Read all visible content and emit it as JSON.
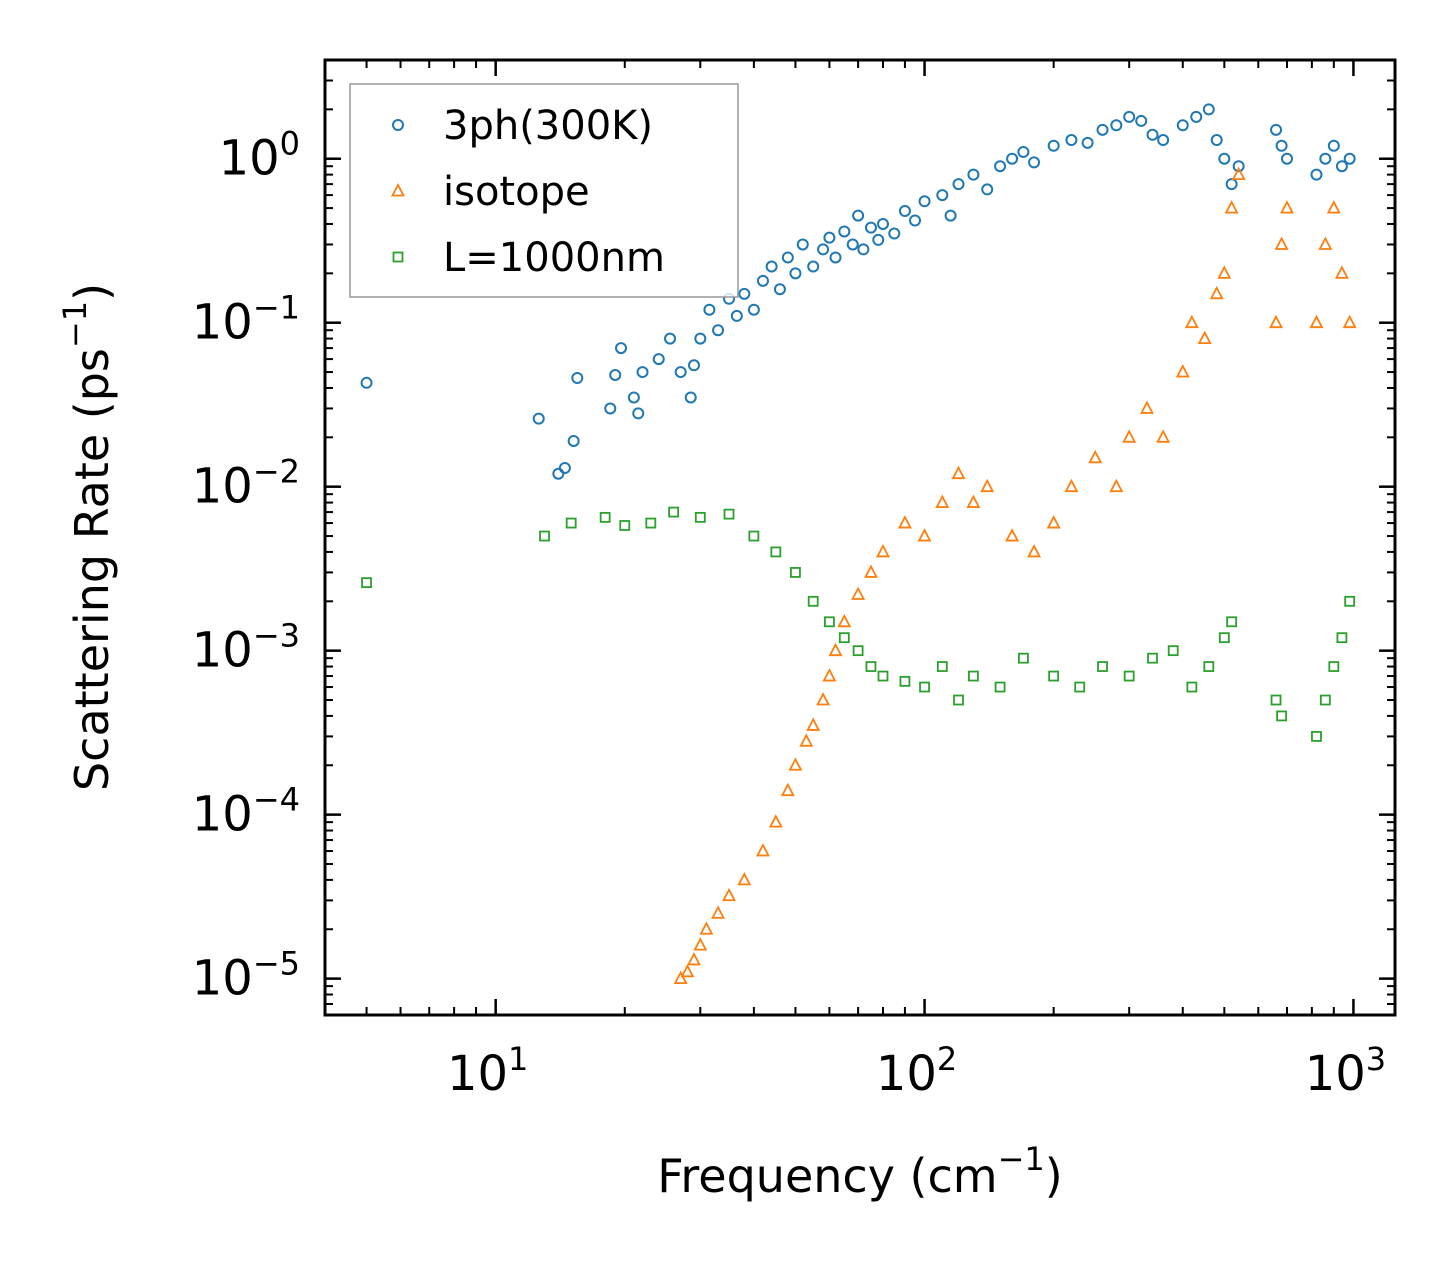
{
  "chart_data": {
    "type": "scatter",
    "xscale": "log",
    "yscale": "log",
    "xlim": [
      4,
      1250
    ],
    "ylim": [
      6e-06,
      4
    ],
    "xlabel": {
      "text": "Frequency (cm",
      "sup": "−1",
      "close": ")"
    },
    "ylabel": {
      "text": "Scattering Rate (ps",
      "sup": "−1",
      "close": ")"
    },
    "x_ticks": [
      {
        "value": 10,
        "base": "10",
        "exp": "1"
      },
      {
        "value": 100,
        "base": "10",
        "exp": "2"
      },
      {
        "value": 1000,
        "base": "10",
        "exp": "3"
      }
    ],
    "y_ticks": [
      {
        "value": 1,
        "base": "10",
        "exp": "0"
      },
      {
        "value": 0.1,
        "base": "10",
        "exp": "−1"
      },
      {
        "value": 0.01,
        "base": "10",
        "exp": "−2"
      },
      {
        "value": 0.001,
        "base": "10",
        "exp": "−3"
      },
      {
        "value": 0.0001,
        "base": "10",
        "exp": "−4"
      },
      {
        "value": 1e-05,
        "base": "10",
        "exp": "−5"
      }
    ],
    "legend_position": "top-left",
    "series": [
      {
        "name": "3ph(300K)",
        "marker": "circle",
        "color": "#1f77b4",
        "points": [
          [
            5.0,
            0.043
          ],
          [
            12.6,
            0.026
          ],
          [
            14.0,
            0.012
          ],
          [
            14.5,
            0.013
          ],
          [
            15.2,
            0.019
          ],
          [
            15.5,
            0.046
          ],
          [
            18.5,
            0.03
          ],
          [
            19.0,
            0.048
          ],
          [
            19.6,
            0.07
          ],
          [
            21.0,
            0.035
          ],
          [
            21.5,
            0.028
          ],
          [
            22.0,
            0.05
          ],
          [
            24.0,
            0.06
          ],
          [
            25.5,
            0.08
          ],
          [
            27.0,
            0.05
          ],
          [
            28.5,
            0.035
          ],
          [
            29.0,
            0.055
          ],
          [
            30.0,
            0.08
          ],
          [
            31.5,
            0.12
          ],
          [
            33.0,
            0.09
          ],
          [
            35.0,
            0.14
          ],
          [
            36.5,
            0.11
          ],
          [
            38.0,
            0.15
          ],
          [
            40.0,
            0.12
          ],
          [
            42.0,
            0.18
          ],
          [
            44.0,
            0.22
          ],
          [
            46.0,
            0.16
          ],
          [
            48.0,
            0.25
          ],
          [
            50.0,
            0.2
          ],
          [
            52.0,
            0.3
          ],
          [
            55.0,
            0.22
          ],
          [
            58.0,
            0.28
          ],
          [
            60.0,
            0.33
          ],
          [
            62.0,
            0.25
          ],
          [
            65.0,
            0.36
          ],
          [
            68.0,
            0.3
          ],
          [
            70.0,
            0.45
          ],
          [
            72.0,
            0.28
          ],
          [
            75.0,
            0.38
          ],
          [
            78.0,
            0.32
          ],
          [
            80.0,
            0.4
          ],
          [
            85.0,
            0.35
          ],
          [
            90.0,
            0.48
          ],
          [
            95.0,
            0.42
          ],
          [
            100.0,
            0.55
          ],
          [
            110.0,
            0.6
          ],
          [
            115.0,
            0.45
          ],
          [
            120.0,
            0.7
          ],
          [
            130.0,
            0.8
          ],
          [
            140.0,
            0.65
          ],
          [
            150.0,
            0.9
          ],
          [
            160.0,
            1.0
          ],
          [
            170.0,
            1.1
          ],
          [
            180.0,
            0.95
          ],
          [
            200.0,
            1.2
          ],
          [
            220.0,
            1.3
          ],
          [
            240.0,
            1.25
          ],
          [
            260.0,
            1.5
          ],
          [
            280.0,
            1.6
          ],
          [
            300.0,
            1.8
          ],
          [
            320.0,
            1.7
          ],
          [
            340.0,
            1.4
          ],
          [
            360.0,
            1.3
          ],
          [
            400.0,
            1.6
          ],
          [
            430.0,
            1.8
          ],
          [
            460.0,
            2.0
          ],
          [
            480.0,
            1.3
          ],
          [
            500.0,
            1.0
          ],
          [
            520.0,
            0.7
          ],
          [
            540.0,
            0.9
          ],
          [
            660.0,
            1.5
          ],
          [
            680.0,
            1.2
          ],
          [
            700.0,
            1.0
          ],
          [
            820.0,
            0.8
          ],
          [
            860.0,
            1.0
          ],
          [
            900.0,
            1.2
          ],
          [
            940.0,
            0.9
          ],
          [
            980.0,
            1.0
          ]
        ]
      },
      {
        "name": "isotope",
        "marker": "triangle",
        "color": "#ff7f0e",
        "points": [
          [
            27.0,
            1e-05
          ],
          [
            28.0,
            1.1e-05
          ],
          [
            29.0,
            1.3e-05
          ],
          [
            30.0,
            1.6e-05
          ],
          [
            31.0,
            2e-05
          ],
          [
            33.0,
            2.5e-05
          ],
          [
            35.0,
            3.2e-05
          ],
          [
            38.0,
            4e-05
          ],
          [
            42.0,
            6e-05
          ],
          [
            45.0,
            9e-05
          ],
          [
            48.0,
            0.00014
          ],
          [
            50.0,
            0.0002
          ],
          [
            53.0,
            0.00028
          ],
          [
            55.0,
            0.00035
          ],
          [
            58.0,
            0.0005
          ],
          [
            60.0,
            0.0007
          ],
          [
            62.0,
            0.001
          ],
          [
            65.0,
            0.0015
          ],
          [
            70.0,
            0.0022
          ],
          [
            75.0,
            0.003
          ],
          [
            80.0,
            0.004
          ],
          [
            90.0,
            0.006
          ],
          [
            100.0,
            0.005
          ],
          [
            110.0,
            0.008
          ],
          [
            120.0,
            0.012
          ],
          [
            130.0,
            0.008
          ],
          [
            140.0,
            0.01
          ],
          [
            160.0,
            0.005
          ],
          [
            180.0,
            0.004
          ],
          [
            200.0,
            0.006
          ],
          [
            220.0,
            0.01
          ],
          [
            250.0,
            0.015
          ],
          [
            280.0,
            0.01
          ],
          [
            300.0,
            0.02
          ],
          [
            330.0,
            0.03
          ],
          [
            360.0,
            0.02
          ],
          [
            400.0,
            0.05
          ],
          [
            420.0,
            0.1
          ],
          [
            450.0,
            0.08
          ],
          [
            480.0,
            0.15
          ],
          [
            500.0,
            0.2
          ],
          [
            520.0,
            0.5
          ],
          [
            540.0,
            0.8
          ],
          [
            660.0,
            0.1
          ],
          [
            680.0,
            0.3
          ],
          [
            700.0,
            0.5
          ],
          [
            820.0,
            0.1
          ],
          [
            860.0,
            0.3
          ],
          [
            900.0,
            0.5
          ],
          [
            940.0,
            0.2
          ],
          [
            980.0,
            0.1
          ]
        ]
      },
      {
        "name": "L=1000nm",
        "marker": "square",
        "color": "#2ca02c",
        "points": [
          [
            5.0,
            0.0026
          ],
          [
            13.0,
            0.005
          ],
          [
            15.0,
            0.006
          ],
          [
            18.0,
            0.0065
          ],
          [
            20.0,
            0.0058
          ],
          [
            23.0,
            0.006
          ],
          [
            26.0,
            0.007
          ],
          [
            30.0,
            0.0065
          ],
          [
            35.0,
            0.0068
          ],
          [
            40.0,
            0.005
          ],
          [
            45.0,
            0.004
          ],
          [
            50.0,
            0.003
          ],
          [
            55.0,
            0.002
          ],
          [
            60.0,
            0.0015
          ],
          [
            65.0,
            0.0012
          ],
          [
            70.0,
            0.001
          ],
          [
            75.0,
            0.0008
          ],
          [
            80.0,
            0.0007
          ],
          [
            90.0,
            0.00065
          ],
          [
            100.0,
            0.0006
          ],
          [
            110.0,
            0.0008
          ],
          [
            120.0,
            0.0005
          ],
          [
            130.0,
            0.0007
          ],
          [
            150.0,
            0.0006
          ],
          [
            170.0,
            0.0009
          ],
          [
            200.0,
            0.0007
          ],
          [
            230.0,
            0.0006
          ],
          [
            260.0,
            0.0008
          ],
          [
            300.0,
            0.0007
          ],
          [
            340.0,
            0.0009
          ],
          [
            380.0,
            0.001
          ],
          [
            420.0,
            0.0006
          ],
          [
            460.0,
            0.0008
          ],
          [
            500.0,
            0.0012
          ],
          [
            520.0,
            0.0015
          ],
          [
            660.0,
            0.0005
          ],
          [
            680.0,
            0.0004
          ],
          [
            820.0,
            0.0003
          ],
          [
            860.0,
            0.0005
          ],
          [
            900.0,
            0.0008
          ],
          [
            940.0,
            0.0012
          ],
          [
            980.0,
            0.002
          ]
        ]
      }
    ]
  }
}
